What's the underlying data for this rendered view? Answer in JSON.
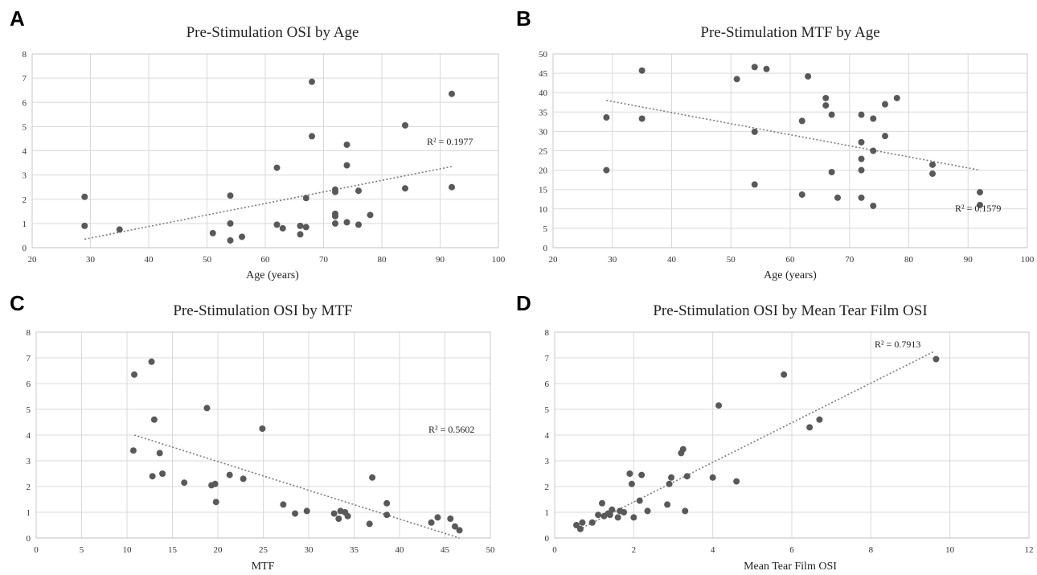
{
  "chart_data": [
    {
      "panel": "A",
      "type": "scatter",
      "title": "Pre-Stimulation OSI by Age",
      "xlabel": "Age (years)",
      "ylabel": "",
      "xlim": [
        20,
        100
      ],
      "ylim": [
        0,
        8
      ],
      "xticks": [
        20,
        30,
        40,
        50,
        60,
        70,
        80,
        90,
        100
      ],
      "yticks": [
        0,
        1,
        2,
        3,
        4,
        5,
        6,
        7,
        8
      ],
      "grid": true,
      "r2": "R² = 0.1977",
      "trendline": {
        "x": [
          29,
          92
        ],
        "y": [
          0.35,
          3.35
        ]
      },
      "points": [
        [
          29,
          2.1
        ],
        [
          29,
          0.9
        ],
        [
          35,
          0.75
        ],
        [
          51,
          0.6
        ],
        [
          54,
          2.15
        ],
        [
          54,
          1.0
        ],
        [
          54,
          0.3
        ],
        [
          56,
          0.45
        ],
        [
          62,
          3.3
        ],
        [
          62,
          0.95
        ],
        [
          63,
          0.8
        ],
        [
          66,
          0.55
        ],
        [
          66,
          0.9
        ],
        [
          67,
          2.05
        ],
        [
          67,
          0.85
        ],
        [
          68,
          6.85
        ],
        [
          68,
          4.6
        ],
        [
          72,
          2.4
        ],
        [
          72,
          2.3
        ],
        [
          72,
          1.4
        ],
        [
          72,
          1.3
        ],
        [
          72,
          1.0
        ],
        [
          74,
          4.25
        ],
        [
          74,
          3.4
        ],
        [
          74,
          1.05
        ],
        [
          76,
          2.35
        ],
        [
          76,
          0.95
        ],
        [
          78,
          1.35
        ],
        [
          84,
          5.05
        ],
        [
          84,
          2.45
        ],
        [
          92,
          6.35
        ],
        [
          92,
          2.5
        ]
      ]
    },
    {
      "panel": "B",
      "type": "scatter",
      "title": "Pre-Stimulation MTF by Age",
      "xlabel": "Age (years)",
      "ylabel": "",
      "xlim": [
        20,
        100
      ],
      "ylim": [
        0,
        50
      ],
      "xticks": [
        20,
        30,
        40,
        50,
        60,
        70,
        80,
        90,
        100
      ],
      "yticks": [
        0,
        5,
        10,
        15,
        20,
        25,
        30,
        35,
        40,
        45,
        50
      ],
      "grid": true,
      "r2": "R² = 0.1579",
      "trendline": {
        "x": [
          29,
          92
        ],
        "y": [
          38,
          20
        ]
      },
      "points": [
        [
          29,
          33.6
        ],
        [
          29,
          20
        ],
        [
          35,
          45.7
        ],
        [
          35,
          33.3
        ],
        [
          51,
          43.5
        ],
        [
          54,
          46.6
        ],
        [
          54,
          29.9
        ],
        [
          54,
          16.3
        ],
        [
          56,
          46.1
        ],
        [
          62,
          32.7
        ],
        [
          62,
          13.7
        ],
        [
          63,
          44.2
        ],
        [
          66,
          38.6
        ],
        [
          66,
          36.7
        ],
        [
          67,
          34.3
        ],
        [
          67,
          19.5
        ],
        [
          68,
          12.9
        ],
        [
          72,
          34.3
        ],
        [
          72,
          27.2
        ],
        [
          72,
          22.9
        ],
        [
          72,
          20
        ],
        [
          72,
          12.9
        ],
        [
          74,
          33.3
        ],
        [
          74,
          25
        ],
        [
          74,
          10.8
        ],
        [
          76,
          37
        ],
        [
          76,
          28.8
        ],
        [
          78,
          38.6
        ],
        [
          84,
          21.4
        ],
        [
          84,
          19.1
        ],
        [
          92,
          14.3
        ],
        [
          92,
          11
        ]
      ]
    },
    {
      "panel": "C",
      "type": "scatter",
      "title": "Pre-Stimulation OSI by MTF",
      "xlabel": "MTF",
      "ylabel": "",
      "xlim": [
        0,
        50
      ],
      "ylim": [
        0,
        8
      ],
      "xticks": [
        0,
        5,
        10,
        15,
        20,
        25,
        30,
        35,
        40,
        45,
        50
      ],
      "yticks": [
        0,
        1,
        2,
        3,
        4,
        5,
        6,
        7,
        8
      ],
      "grid": true,
      "r2": "R² = 0.5602",
      "trendline": {
        "x": [
          10.8,
          46.6
        ],
        "y": [
          4.0,
          0.0
        ]
      },
      "points": [
        [
          10.8,
          6.35
        ],
        [
          12.7,
          6.85
        ],
        [
          13.0,
          4.6
        ],
        [
          10.7,
          3.4
        ],
        [
          13.6,
          3.3
        ],
        [
          12.8,
          2.4
        ],
        [
          13.9,
          2.5
        ],
        [
          16.3,
          2.15
        ],
        [
          18.8,
          5.05
        ],
        [
          19.3,
          2.05
        ],
        [
          19.7,
          2.1
        ],
        [
          19.8,
          1.4
        ],
        [
          21.3,
          2.45
        ],
        [
          22.8,
          2.3
        ],
        [
          24.9,
          4.25
        ],
        [
          27.2,
          1.3
        ],
        [
          28.5,
          0.95
        ],
        [
          29.8,
          1.05
        ],
        [
          32.8,
          0.95
        ],
        [
          33.3,
          0.75
        ],
        [
          33.5,
          1.05
        ],
        [
          34.0,
          1.0
        ],
        [
          34.3,
          0.85
        ],
        [
          36.7,
          0.55
        ],
        [
          37.0,
          2.35
        ],
        [
          38.6,
          1.35
        ],
        [
          38.6,
          0.9
        ],
        [
          43.5,
          0.6
        ],
        [
          44.2,
          0.8
        ],
        [
          45.6,
          0.75
        ],
        [
          46.1,
          0.45
        ],
        [
          46.6,
          0.3
        ]
      ]
    },
    {
      "panel": "D",
      "type": "scatter",
      "title": "Pre-Stimulation OSI by Mean Tear Film OSI",
      "xlabel": "Mean Tear Film OSI",
      "ylabel": "",
      "xlim": [
        0,
        12
      ],
      "ylim": [
        0,
        8
      ],
      "xticks": [
        0,
        2,
        4,
        6,
        8,
        10,
        12
      ],
      "yticks": [
        0,
        1,
        2,
        3,
        4,
        5,
        6,
        7,
        8
      ],
      "grid": true,
      "r2": "R² = 0.7913",
      "trendline": {
        "x": [
          0.7,
          9.6
        ],
        "y": [
          0.4,
          7.25
        ]
      },
      "points": [
        [
          0.55,
          0.5
        ],
        [
          0.65,
          0.35
        ],
        [
          0.7,
          0.6
        ],
        [
          0.95,
          0.6
        ],
        [
          1.1,
          0.9
        ],
        [
          1.2,
          1.35
        ],
        [
          1.25,
          0.85
        ],
        [
          1.35,
          0.95
        ],
        [
          1.4,
          0.9
        ],
        [
          1.45,
          1.1
        ],
        [
          1.6,
          0.8
        ],
        [
          1.65,
          1.05
        ],
        [
          1.75,
          1.0
        ],
        [
          1.9,
          2.5
        ],
        [
          1.95,
          2.1
        ],
        [
          2.0,
          0.8
        ],
        [
          2.15,
          1.45
        ],
        [
          2.2,
          2.45
        ],
        [
          2.35,
          1.05
        ],
        [
          2.85,
          1.3
        ],
        [
          2.9,
          2.1
        ],
        [
          2.95,
          2.35
        ],
        [
          3.2,
          3.3
        ],
        [
          3.25,
          3.45
        ],
        [
          3.3,
          1.05
        ],
        [
          3.35,
          2.4
        ],
        [
          4.0,
          2.35
        ],
        [
          4.15,
          5.15
        ],
        [
          4.6,
          2.2
        ],
        [
          5.8,
          6.35
        ],
        [
          6.45,
          4.3
        ],
        [
          6.7,
          4.6
        ],
        [
          9.65,
          6.95
        ]
      ]
    }
  ]
}
